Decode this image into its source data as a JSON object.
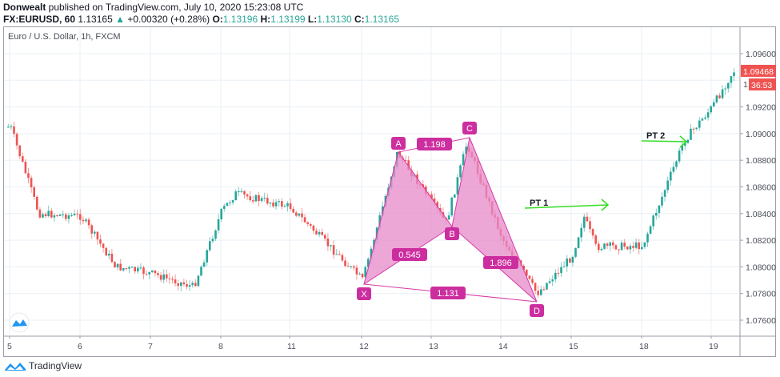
{
  "header": {
    "author": "Donwealt",
    "published_text": " published on TradingView.com, July 10, 2020 15:23:08 UTC",
    "symbol": "FX:EURUSD, 60",
    "last": "1.13165",
    "change_icon": "triangle-up-icon",
    "change": "+0.00320 (+0.28%)",
    "o_label": "O:",
    "o_value": "1.13196",
    "h_label": "H:",
    "h_value": "1.13199",
    "l_label": "L:",
    "l_value": "1.13130",
    "c_label": "C:",
    "c_value": "1.13165"
  },
  "chart": {
    "symbol_label": "Euro / U.S. Dollar, 1h, FXCM",
    "current_price": "1.09468",
    "countdown": "36:53",
    "colors": {
      "up": "#26a69a",
      "down": "#ef5350",
      "pattern": "#d63aa6",
      "pattern_fill": "#e68ac9",
      "arrow": "#33dd22",
      "grid": "#e9f0f6"
    }
  },
  "footer": {
    "brand": "TradingView"
  },
  "chart_data": {
    "type": "candlestick",
    "title": "Euro / U.S. Dollar, 1h, FXCM",
    "xlabel": "",
    "ylabel": "",
    "x_ticks": [
      "5",
      "6",
      "7",
      "8",
      "11",
      "12",
      "13",
      "14",
      "15",
      "18",
      "19"
    ],
    "y_ticks": [
      "1.07600",
      "1.07800",
      "1.08000",
      "1.08200",
      "1.08400",
      "1.08600",
      "1.08800",
      "1.09000",
      "1.09200",
      "1.09400",
      "1.09600"
    ],
    "ylim": [
      1.0748,
      1.097
    ],
    "grid": true,
    "last_price": 1.09468,
    "approx_path": [
      {
        "day": "5",
        "price": 1.0905
      },
      {
        "day": "5.4",
        "price": 1.084
      },
      {
        "day": "6",
        "price": 1.0838
      },
      {
        "day": "6.5",
        "price": 1.08
      },
      {
        "day": "7",
        "price": 1.0795
      },
      {
        "day": "7.6",
        "price": 1.0785
      },
      {
        "day": "8",
        "price": 1.0842
      },
      {
        "day": "8.6",
        "price": 1.0855
      },
      {
        "day": "11",
        "price": 1.0845
      },
      {
        "day": "12",
        "price": 1.079
      },
      {
        "day": "12.5",
        "price": 1.0886
      },
      {
        "day": "13.2",
        "price": 1.0833
      },
      {
        "day": "13.5",
        "price": 1.0893
      },
      {
        "day": "14",
        "price": 1.0822
      },
      {
        "day": "14.5",
        "price": 1.078
      },
      {
        "day": "15",
        "price": 1.0808
      },
      {
        "day": "15.5",
        "price": 1.0838
      },
      {
        "day": "16",
        "price": 1.0815
      },
      {
        "day": "18",
        "price": 1.0816
      },
      {
        "day": "18.6",
        "price": 1.0895
      },
      {
        "day": "19",
        "price": 1.092
      },
      {
        "day": "19.3",
        "price": 1.0947
      }
    ],
    "harmonic_pattern": {
      "points": [
        {
          "label": "X",
          "price": 1.0789
        },
        {
          "label": "A",
          "price": 1.0886
        },
        {
          "label": "B",
          "price": 1.0833
        },
        {
          "label": "C",
          "price": 1.0893
        },
        {
          "label": "D",
          "price": 1.0775
        }
      ],
      "ratios": [
        {
          "legs": "XA-AB",
          "value": "0.545"
        },
        {
          "legs": "AB-BC",
          "value": "1.198"
        },
        {
          "legs": "BC-CD",
          "value": "1.896"
        },
        {
          "legs": "XA-AD",
          "value": "1.131"
        }
      ]
    },
    "annotations": [
      {
        "text": "PT 1",
        "price": 1.0845
      },
      {
        "text": "PT 2",
        "price": 1.0893
      }
    ]
  }
}
